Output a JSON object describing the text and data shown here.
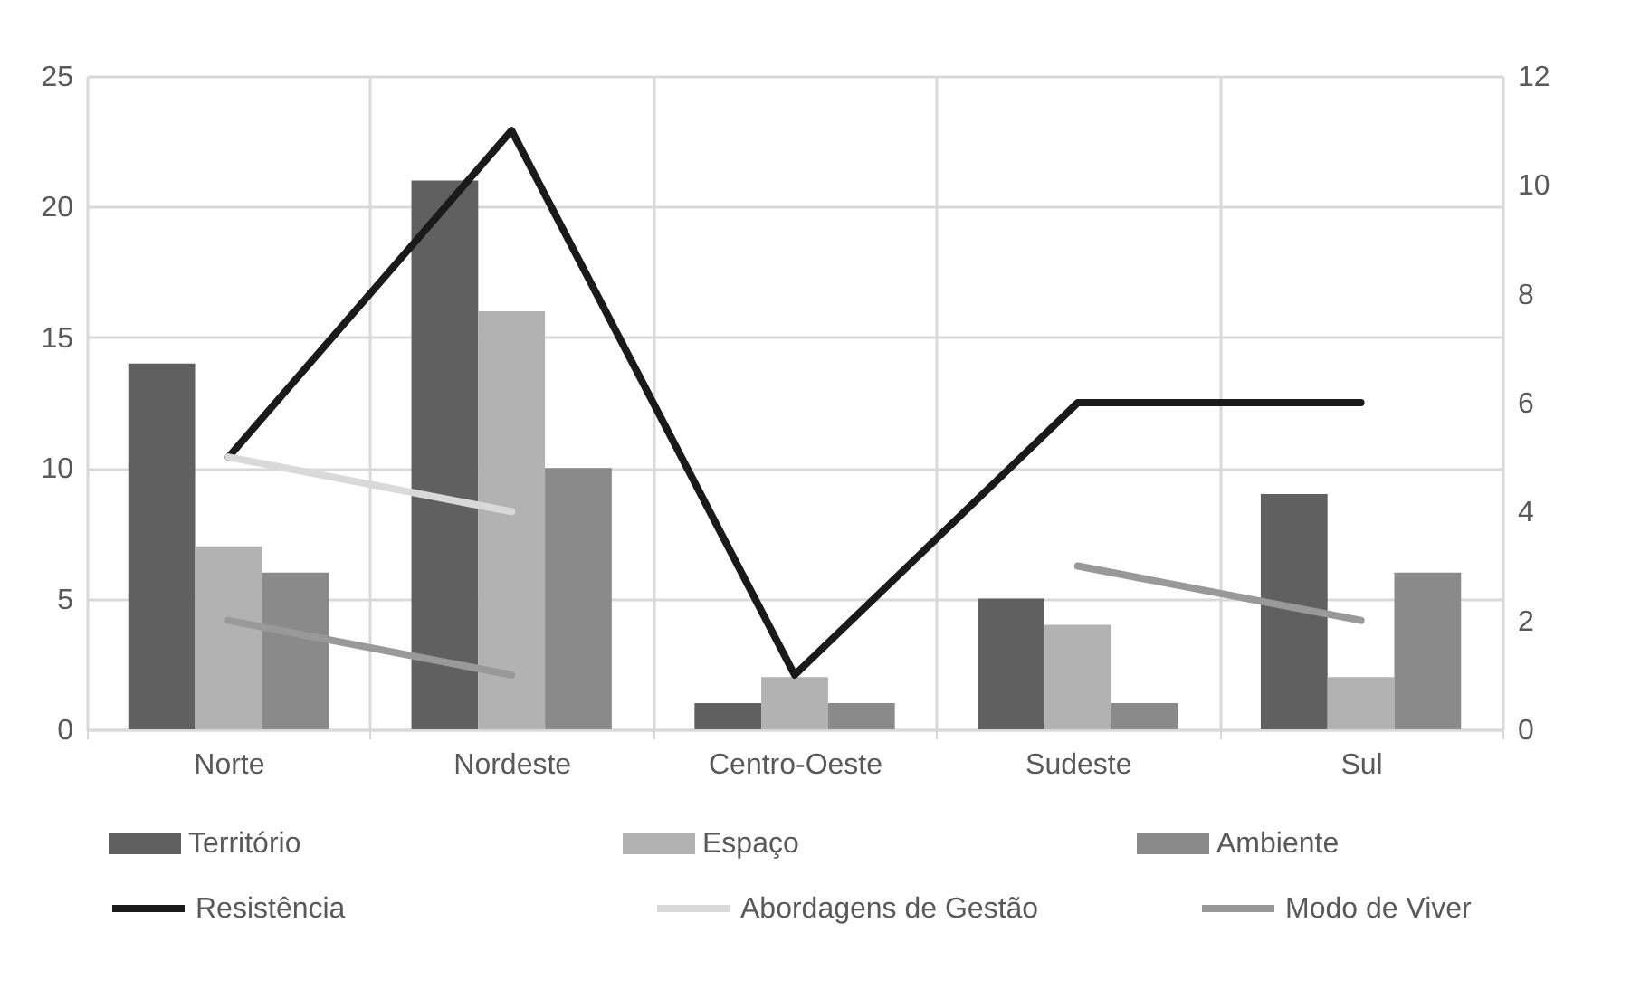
{
  "chart_data": {
    "type": "bar",
    "categories": [
      "Norte",
      "Nordeste",
      "Centro-Oeste",
      "Sudeste",
      "Sul"
    ],
    "series": [
      {
        "name": "Território",
        "color": "#606060",
        "values": [
          14,
          21,
          1,
          5,
          9
        ]
      },
      {
        "name": "Espaço",
        "color": "#b2b2b2",
        "values": [
          7,
          16,
          2,
          4,
          2
        ]
      },
      {
        "name": "Ambiente",
        "color": "#8a8a8a",
        "values": [
          6,
          10,
          1,
          1,
          6
        ]
      },
      {
        "name": "Resistência",
        "color": "#1a1a1a",
        "type": "line",
        "axis": "y2",
        "values": [
          5,
          11,
          1,
          6,
          6
        ]
      },
      {
        "name": "Abordagens de Gestão",
        "color": "#d9d9d9",
        "type": "line",
        "axis": "y2",
        "values": [
          5,
          4,
          null,
          null,
          null
        ]
      },
      {
        "name": "Modo de Viver",
        "color": "#999999",
        "type": "line",
        "axis": "y2",
        "values": [
          2,
          1,
          null,
          3,
          2
        ]
      }
    ],
    "ylim": [
      0,
      25
    ],
    "yticks": [
      0,
      5,
      10,
      15,
      20,
      25
    ],
    "y2lim": [
      0,
      12
    ],
    "y2ticks": [
      0,
      2,
      4,
      6,
      8,
      10,
      12
    ],
    "grid": true,
    "legend": "bottom"
  }
}
